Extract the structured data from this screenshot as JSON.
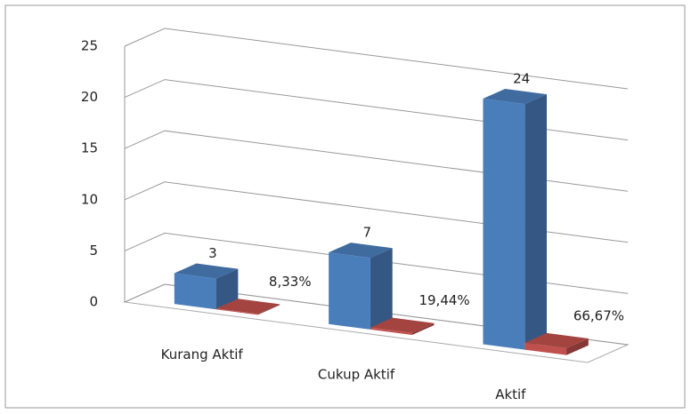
{
  "chart_data": {
    "type": "bar3d",
    "categories": [
      "Kurang Aktif",
      "Cukup Aktif",
      "Aktif"
    ],
    "series": [
      {
        "color": "#4a7ebb",
        "values": [
          3,
          7,
          24
        ]
      },
      {
        "color": "#c0504d",
        "values": [
          0.0833,
          0.1944,
          0.6667
        ],
        "value_labels": [
          "8,33%",
          "19,44%",
          "66,67%"
        ]
      }
    ],
    "ylim": [
      0,
      25
    ],
    "yticks": [
      0,
      5,
      10,
      15,
      20,
      25
    ],
    "grid": true
  }
}
